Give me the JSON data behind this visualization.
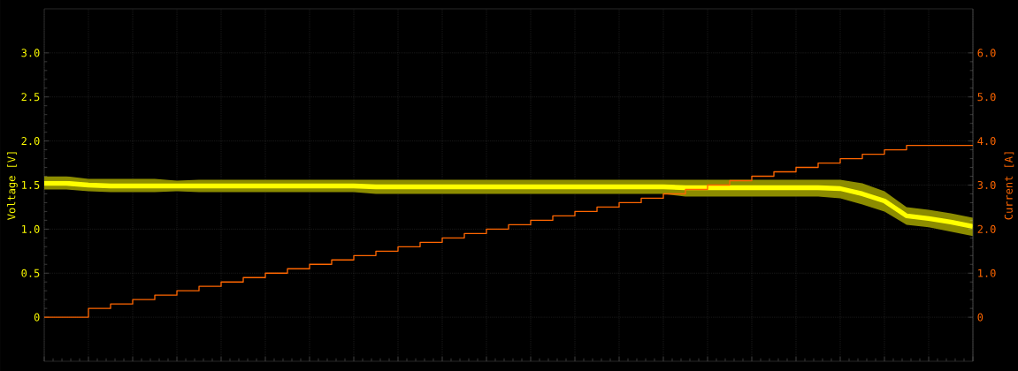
{
  "chart_data": {
    "type": "line",
    "categories": [
      null,
      null,
      null,
      null,
      null,
      null,
      null,
      null,
      null,
      null,
      null,
      null,
      null,
      null,
      null,
      null,
      null,
      null,
      null,
      null,
      null,
      null,
      null,
      null,
      null,
      null,
      null,
      null,
      null,
      null,
      null,
      null,
      null,
      null,
      null,
      null,
      null,
      null,
      null,
      null,
      null,
      null,
      null
    ],
    "series": [
      {
        "color": "#ffff00",
        "values": [
          1.52,
          1.52,
          1.5,
          1.49,
          1.49,
          1.49,
          1.49,
          1.49,
          1.49,
          1.49,
          1.49,
          1.49,
          1.49,
          1.49,
          1.49,
          1.48,
          1.48,
          1.48,
          1.48,
          1.48,
          1.48,
          1.48,
          1.48,
          1.48,
          1.48,
          1.48,
          1.48,
          1.48,
          1.48,
          1.47,
          1.47,
          1.47,
          1.47,
          1.47,
          1.47,
          1.47,
          1.46,
          1.4,
          1.32,
          1.15,
          1.12,
          1.08,
          1.03
        ],
        "lower": [
          1.45,
          1.45,
          1.43,
          1.42,
          1.42,
          1.42,
          1.43,
          1.42,
          1.42,
          1.42,
          1.42,
          1.42,
          1.42,
          1.42,
          1.42,
          1.4,
          1.4,
          1.4,
          1.4,
          1.4,
          1.4,
          1.4,
          1.4,
          1.4,
          1.4,
          1.4,
          1.4,
          1.4,
          1.4,
          1.37,
          1.37,
          1.37,
          1.37,
          1.37,
          1.37,
          1.37,
          1.35,
          1.28,
          1.2,
          1.05,
          1.02,
          0.97,
          0.92
        ],
        "upper": [
          1.6,
          1.6,
          1.57,
          1.57,
          1.57,
          1.57,
          1.55,
          1.56,
          1.56,
          1.56,
          1.56,
          1.56,
          1.56,
          1.56,
          1.56,
          1.56,
          1.56,
          1.56,
          1.56,
          1.56,
          1.56,
          1.56,
          1.56,
          1.56,
          1.56,
          1.56,
          1.56,
          1.56,
          1.56,
          1.56,
          1.56,
          1.56,
          1.56,
          1.56,
          1.56,
          1.56,
          1.56,
          1.52,
          1.43,
          1.25,
          1.22,
          1.18,
          1.13
        ]
      },
      {
        "type": "step",
        "axis": "y2",
        "color": "#ff6600",
        "values": [
          0,
          0,
          0.2,
          0.3,
          0.4,
          0.5,
          0.6,
          0.7,
          0.8,
          0.9,
          1.0,
          1.1,
          1.2,
          1.3,
          1.4,
          1.5,
          1.6,
          1.7,
          1.8,
          1.9,
          2.0,
          2.1,
          2.2,
          2.3,
          2.4,
          2.5,
          2.6,
          2.7,
          2.8,
          2.9,
          3.0,
          3.1,
          3.2,
          3.3,
          3.4,
          3.5,
          3.6,
          3.7,
          3.8,
          3.9,
          3.9,
          3.9,
          3.9
        ]
      }
    ],
    "ylabel": "Voltage [V]",
    "y2label": "Current [A]",
    "ylim": [
      -0.5,
      3.5
    ],
    "yticks": [
      0,
      0.5,
      {
        "value": 1,
        "label": "1.0"
      },
      1.5,
      {
        "value": 2,
        "label": "2.0"
      },
      2.5,
      {
        "value": 3,
        "label": "3.0"
      }
    ],
    "y2lim": [
      -1,
      7
    ],
    "y2ticks": [
      0,
      {
        "value": 1,
        "label": "1.0"
      },
      {
        "value": 2,
        "label": "2.0"
      },
      {
        "value": 3,
        "label": "3.0"
      },
      {
        "value": 4,
        "label": "4.0"
      },
      {
        "value": 5,
        "label": "5.0"
      },
      {
        "value": 6,
        "label": "6.0"
      }
    ],
    "grid": true
  }
}
